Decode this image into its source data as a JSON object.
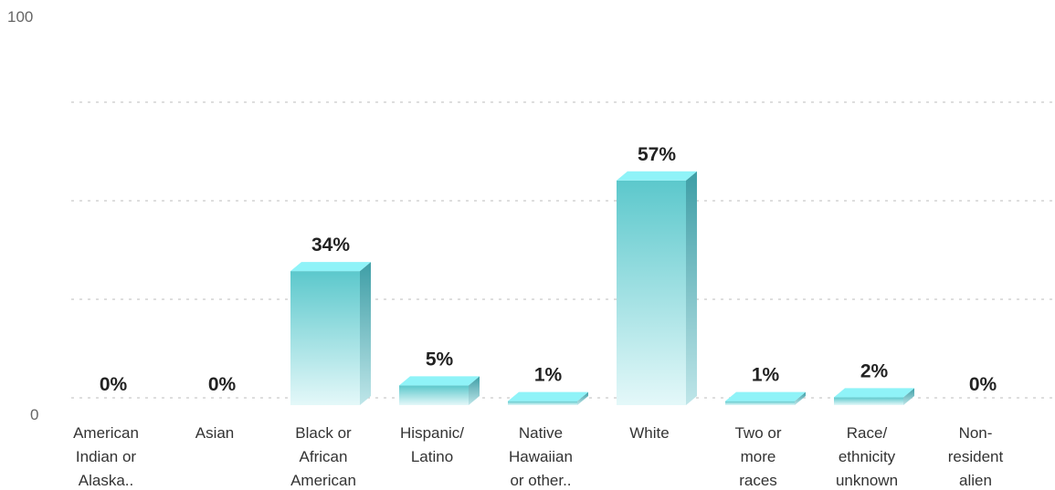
{
  "chart_data": {
    "type": "bar",
    "title": "",
    "xlabel": "",
    "ylabel": "",
    "ylim": [
      0,
      100
    ],
    "y_tick_labels": [
      "0",
      "100"
    ],
    "grid": true,
    "categories": [
      "American Indian or Alaska..",
      "Asian",
      "Black or African American",
      "Hispanic/ Latino",
      "Native Hawaiian or other..",
      "White",
      "Two or more races",
      "Race/ ethnicity unknown",
      "Non-resident alien"
    ],
    "category_lines": [
      [
        "American",
        "Indian or",
        "Alaska.."
      ],
      [
        "Asian"
      ],
      [
        "Black or",
        "African",
        "American"
      ],
      [
        "Hispanic/",
        "Latino"
      ],
      [
        "Native",
        "Hawaiian",
        "or other.."
      ],
      [
        "White"
      ],
      [
        "Two or",
        "more",
        "races"
      ],
      [
        "Race/",
        "ethnicity",
        "unknown"
      ],
      [
        "Non-",
        "resident",
        "alien"
      ]
    ],
    "values": [
      0,
      0,
      34,
      5,
      1,
      57,
      1,
      2,
      0
    ],
    "value_labels": [
      "0%",
      "0%",
      "34%",
      "5%",
      "1%",
      "57%",
      "1%",
      "2%",
      "0%"
    ],
    "colors": {
      "bar_top": "#5cc8cc",
      "bar_bottom": "#e4f8f9",
      "bar_side": "#3e9ea6",
      "bar_cap": "#8ff3f8",
      "grid": "#c9c9c9"
    }
  }
}
